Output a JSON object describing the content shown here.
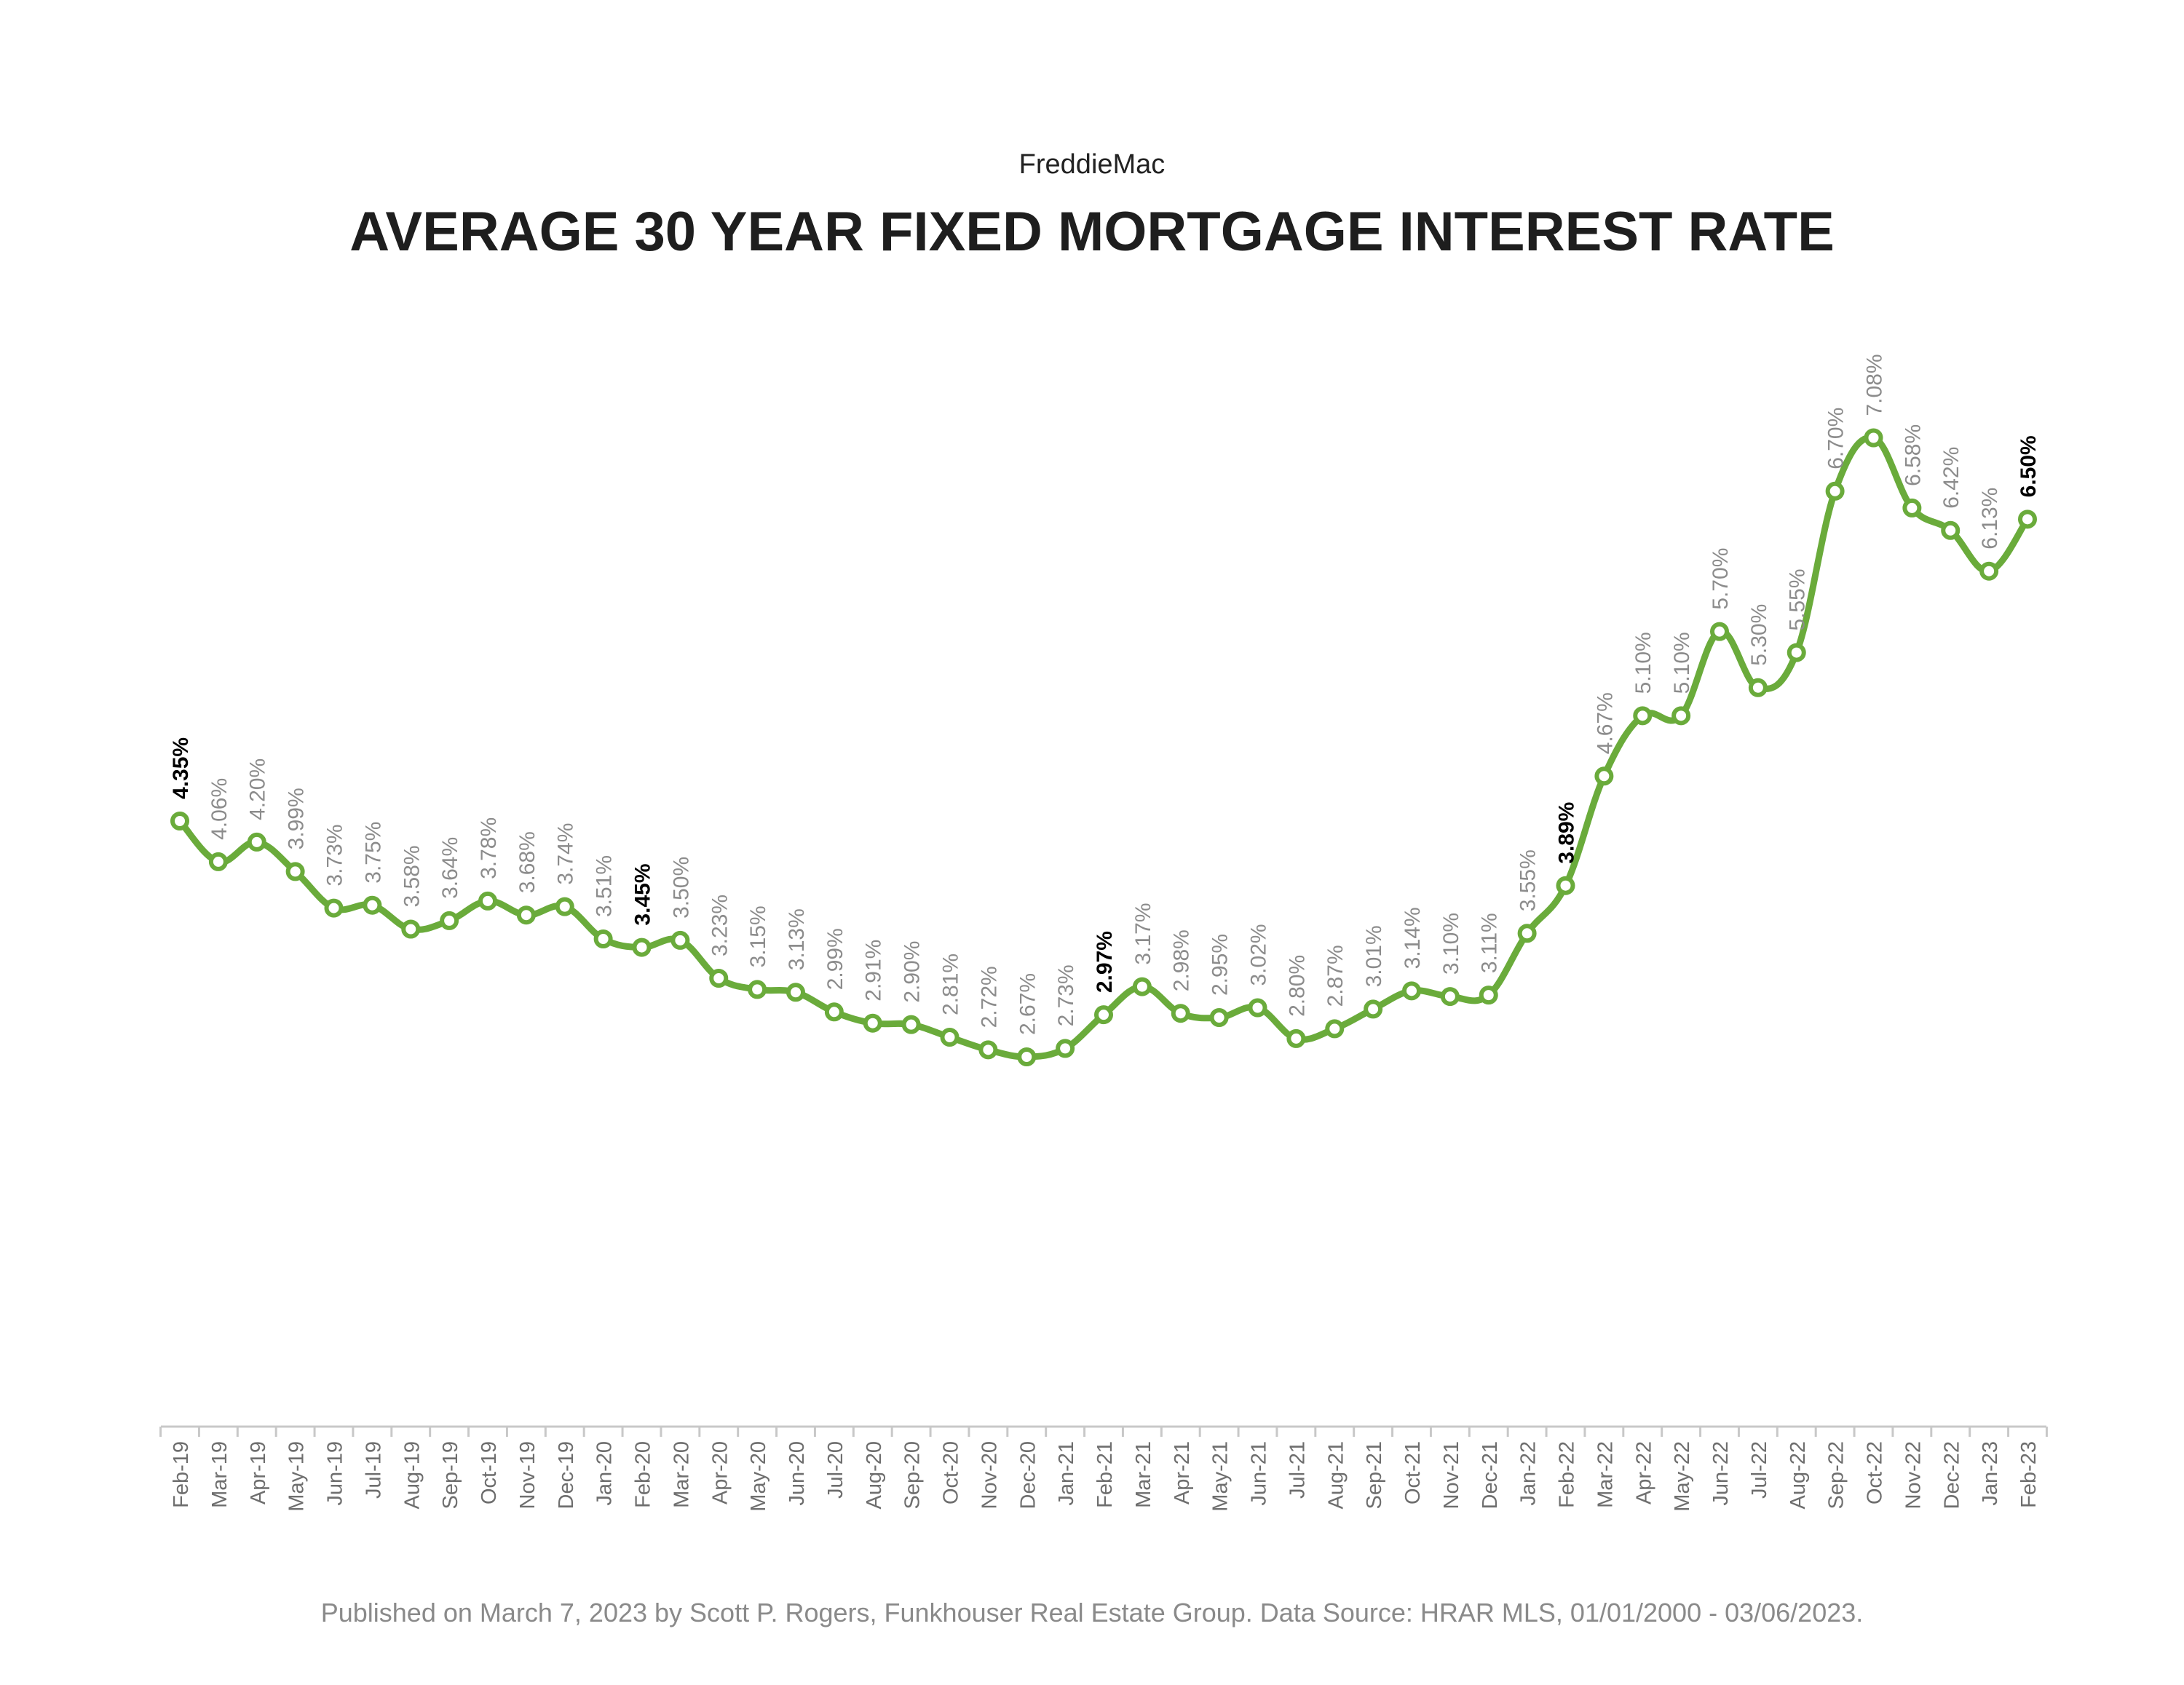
{
  "header": {
    "source": "FreddieMac",
    "title": "AVERAGE 30 YEAR FIXED MORTGAGE INTEREST RATE"
  },
  "footer": {
    "text": "Published on March 7, 2023 by Scott P. Rogers, Funkhouser Real Estate Group. Data Source: HRAR MLS, 01/01/2000 - 03/06/2023."
  },
  "colors": {
    "line": "#6aab3b",
    "marker_fill": "#ffffff",
    "label": "#8c8c8c",
    "highlight_label": "#000000",
    "axis": "#c8c8c8",
    "tick_label": "#6e6e6e"
  },
  "chart_data": {
    "type": "line",
    "title": "AVERAGE 30 YEAR FIXED MORTGAGE INTEREST RATE",
    "xlabel": "",
    "ylabel": "",
    "grid": false,
    "legend": "none",
    "categories": [
      "Feb-19",
      "Mar-19",
      "Apr-19",
      "May-19",
      "Jun-19",
      "Jul-19",
      "Aug-19",
      "Sep-19",
      "Oct-19",
      "Nov-19",
      "Dec-19",
      "Jan-20",
      "Feb-20",
      "Mar-20",
      "Apr-20",
      "May-20",
      "Jun-20",
      "Jul-20",
      "Aug-20",
      "Sep-20",
      "Oct-20",
      "Nov-20",
      "Dec-20",
      "Jan-21",
      "Feb-21",
      "Mar-21",
      "Apr-21",
      "May-21",
      "Jun-21",
      "Jul-21",
      "Aug-21",
      "Sep-21",
      "Oct-21",
      "Nov-21",
      "Dec-21",
      "Jan-22",
      "Feb-22",
      "Mar-22",
      "Apr-22",
      "May-22",
      "Jun-22",
      "Jul-22",
      "Aug-22",
      "Sep-22",
      "Oct-22",
      "Nov-22",
      "Dec-22",
      "Jan-23",
      "Feb-23"
    ],
    "series": [
      {
        "values": [
          4.35,
          4.06,
          4.2,
          3.99,
          3.73,
          3.75,
          3.58,
          3.64,
          3.78,
          3.68,
          3.74,
          3.51,
          3.45,
          3.5,
          3.23,
          3.15,
          3.13,
          2.99,
          2.91,
          2.9,
          2.81,
          2.72,
          2.67,
          2.73,
          2.97,
          3.17,
          2.98,
          2.95,
          3.02,
          2.8,
          2.87,
          3.01,
          3.14,
          3.1,
          3.11,
          3.55,
          3.89,
          4.67,
          5.1,
          5.1,
          5.7,
          5.3,
          5.55,
          6.7,
          7.08,
          6.58,
          6.42,
          6.13,
          6.5
        ],
        "labels": [
          "4.35%",
          "4.06%",
          "4.20%",
          "3.99%",
          "3.73%",
          "3.75%",
          "3.58%",
          "3.64%",
          "3.78%",
          "3.68%",
          "3.74%",
          "3.51%",
          "3.45%",
          "3.50%",
          "3.23%",
          "3.15%",
          "3.13%",
          "2.99%",
          "2.91%",
          "2.90%",
          "2.81%",
          "2.72%",
          "2.67%",
          "2.73%",
          "2.97%",
          "3.17%",
          "2.98%",
          "2.95%",
          "3.02%",
          "2.80%",
          "2.87%",
          "3.01%",
          "3.14%",
          "3.10%",
          "3.11%",
          "3.55%",
          "3.89%",
          "4.67%",
          "5.10%",
          "5.10%",
          "5.70%",
          "5.30%",
          "5.55%",
          "6.70%",
          "7.08%",
          "6.58%",
          "6.42%",
          "6.13%",
          "6.50%"
        ]
      }
    ],
    "highlighted": [
      "Feb-19",
      "Feb-20",
      "Feb-21",
      "Feb-22",
      "Feb-23"
    ],
    "ylim": [
      0,
      8
    ]
  }
}
